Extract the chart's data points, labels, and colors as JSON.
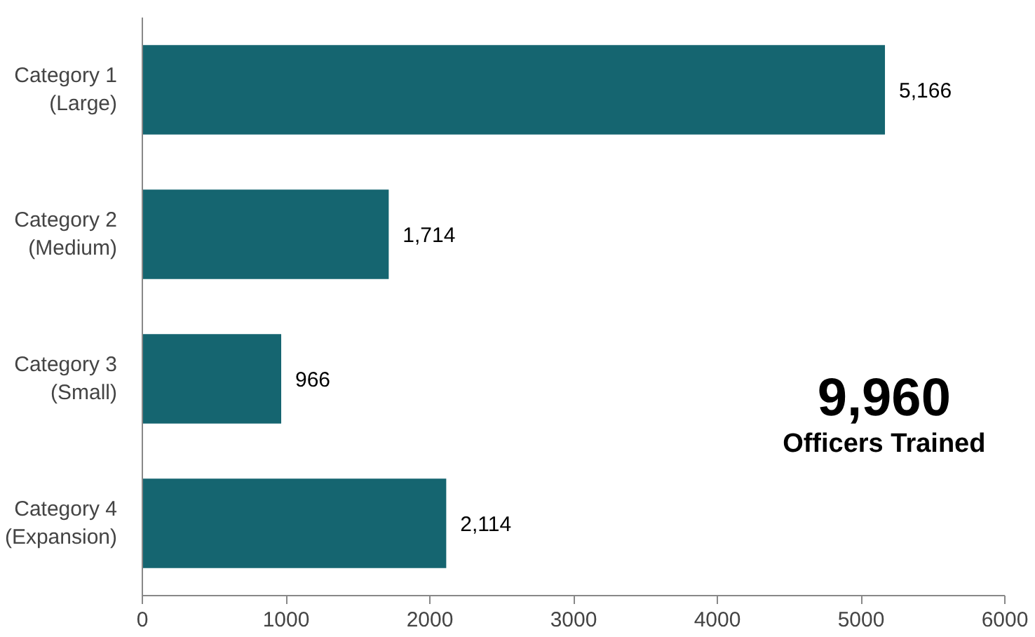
{
  "chart_data": {
    "type": "bar",
    "orientation": "horizontal",
    "categories": [
      "Category 1\n(Large)",
      "Category 2\n(Medium)",
      "Category 3\n(Small)",
      "Category 4\n(Expansion)"
    ],
    "values": [
      5166,
      1714,
      966,
      2114
    ],
    "value_labels": [
      "5,166",
      "1,714",
      "966",
      "2,114"
    ],
    "color": "#156570",
    "xlim": [
      0,
      6000
    ],
    "xticks": [
      0,
      1000,
      2000,
      3000,
      4000,
      5000,
      6000
    ],
    "grid": false,
    "annotations": [
      "9,960",
      "Officers Trained"
    ]
  }
}
